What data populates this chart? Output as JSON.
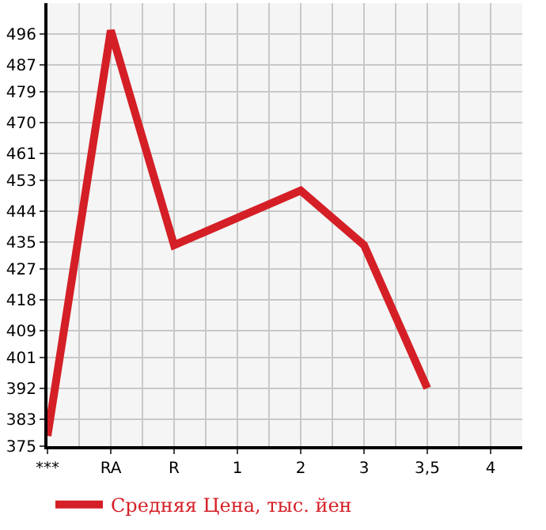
{
  "chart_data": {
    "type": "line",
    "categories": [
      "***",
      "RA",
      "R",
      "1",
      "2",
      "3",
      "3,5",
      "4"
    ],
    "series": [
      {
        "name": "Средняя Цена, тыс. йен",
        "color": "#d41f26",
        "values": [
          378,
          497,
          434,
          442,
          450,
          434,
          392,
          null
        ]
      }
    ],
    "ylim": [
      375,
      505
    ],
    "yticks": [
      375,
      383,
      392,
      401,
      409,
      418,
      427,
      435,
      444,
      453,
      461,
      470,
      479,
      487,
      496
    ],
    "grid": true,
    "legend": "bottom",
    "marker": "none",
    "line_style": "solid"
  }
}
